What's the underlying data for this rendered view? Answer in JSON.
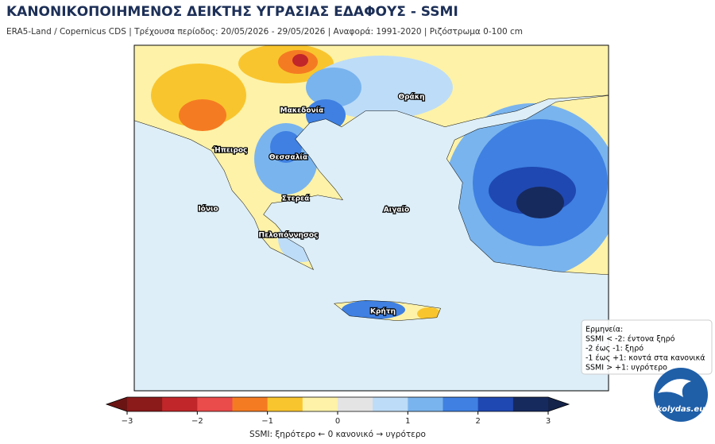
{
  "header": {
    "title": "ΚΑΝΟΝΙΚΟΠΟΙΗΜΕΝΟΣ ΔΕΙΚΤΗΣ ΥΓΡΑΣΙΑΣ ΕΔΑΦΟΥΣ - SSMI",
    "subtitle": "ERA5-Land / Copernicus CDS | Τρέχουσα περίοδος: 20/05/2026 - 29/05/2026 | Αναφορά: 1991-2020 | Ριζόστρωμα 0-100 cm"
  },
  "map": {
    "regions": [
      {
        "label": "Μακεδονία"
      },
      {
        "label": "Θράκη"
      },
      {
        "label": "Ήπειρος"
      },
      {
        "label": "Θεσσαλία"
      },
      {
        "label": "Στερεά"
      },
      {
        "label": "Ιόνιο"
      },
      {
        "label": "Αιγαίο"
      },
      {
        "label": "Πελοπόννησος"
      },
      {
        "label": "Κρήτη"
      }
    ]
  },
  "colorbar": {
    "label": "SSMI: ξηρότερο ← 0 κανονικό → υγρότερο",
    "lim": [
      -3,
      3
    ],
    "colors": [
      "#8b1a1a",
      "#c0262a",
      "#ea4b4b",
      "#f57b22",
      "#f9c52e",
      "#fdf2a8",
      "#e4e4e4",
      "#bddcf7",
      "#7ab4ee",
      "#3f80e2",
      "#1f48b2",
      "#172a5e"
    ],
    "extend_colors": [
      "#6b1414",
      "#14234a"
    ],
    "ticks": [
      {
        "value": -3,
        "label": "−3"
      },
      {
        "value": -2,
        "label": "−2"
      },
      {
        "value": -1,
        "label": "−1"
      },
      0,
      1,
      2,
      3
    ]
  },
  "legend": {
    "title": "Ερμηνεία:",
    "items": [
      "SSMI < -2: έντονα ξηρό",
      "-2 έως -1: ξηρό",
      "-1 έως +1: κοντά στα κανονικά",
      "SSMI > +1: υγρότερο"
    ]
  },
  "logo": {
    "text": "kolydas.eu"
  }
}
